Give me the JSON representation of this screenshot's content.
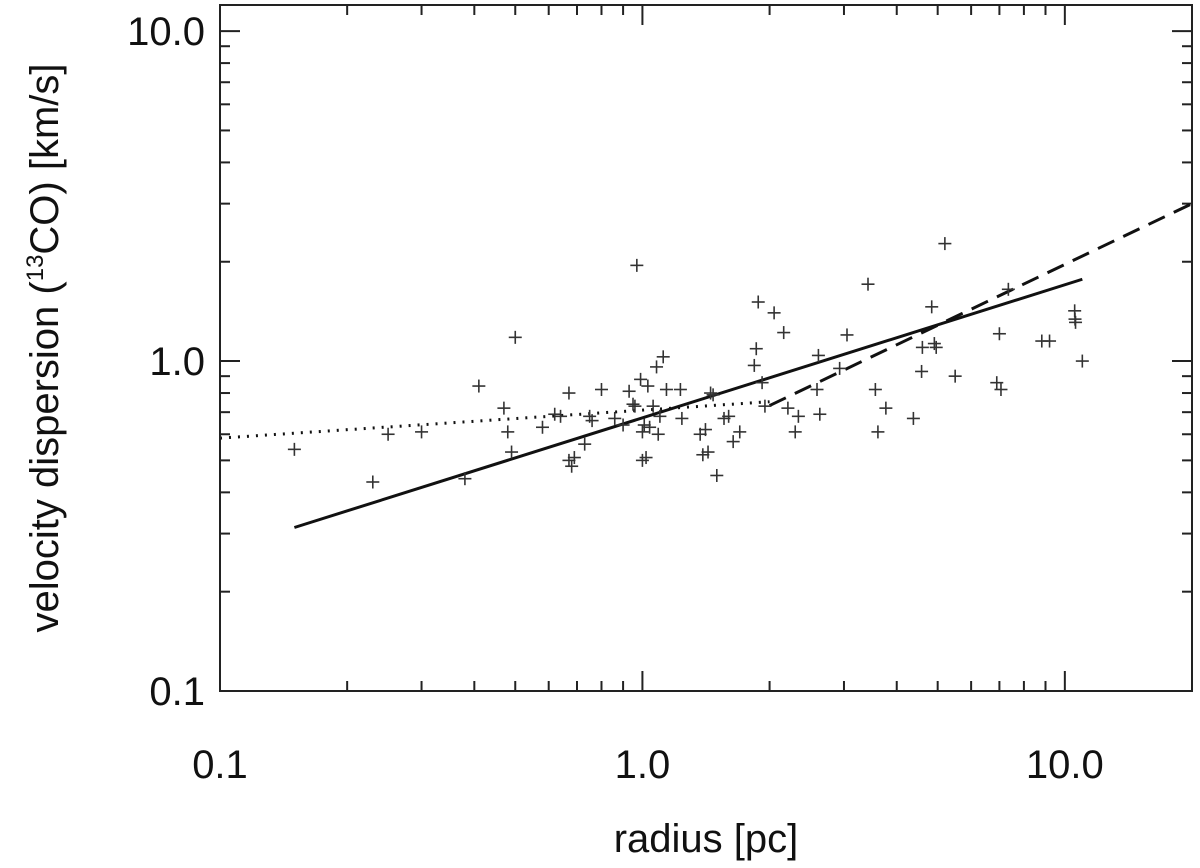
{
  "chart_data": {
    "type": "scatter",
    "title": "",
    "xlabel": "radius [pc]",
    "ylabel": {
      "prefix": "velocity dispersion (",
      "superscript": "13",
      "suffix": "CO) [km/s]"
    },
    "x_scale": "log",
    "y_scale": "log",
    "xlim": [
      0.1,
      20
    ],
    "ylim": [
      0.1,
      12
    ],
    "x_ticks": [
      {
        "value": 0.1,
        "label": "0.1"
      },
      {
        "value": 1.0,
        "label": "1.0"
      },
      {
        "value": 10.0,
        "label": "10.0"
      }
    ],
    "y_ticks": [
      {
        "value": 0.1,
        "label": "0.1"
      },
      {
        "value": 1.0,
        "label": "1.0"
      },
      {
        "value": 10.0,
        "label": "10.0"
      }
    ],
    "grid": false,
    "series": [
      {
        "marker": "plus",
        "points": [
          [
            0.15,
            0.54
          ],
          [
            0.23,
            0.43
          ],
          [
            0.25,
            0.6
          ],
          [
            0.3,
            0.61
          ],
          [
            0.38,
            0.44
          ],
          [
            0.41,
            0.84
          ],
          [
            0.47,
            0.72
          ],
          [
            0.48,
            0.61
          ],
          [
            0.49,
            0.53
          ],
          [
            0.5,
            1.18
          ],
          [
            0.58,
            0.63
          ],
          [
            0.62,
            0.69
          ],
          [
            0.64,
            0.68
          ],
          [
            0.67,
            0.8
          ],
          [
            0.67,
            0.5
          ],
          [
            0.68,
            0.48
          ],
          [
            0.69,
            0.51
          ],
          [
            0.73,
            0.56
          ],
          [
            0.75,
            0.68
          ],
          [
            0.76,
            0.66
          ],
          [
            0.8,
            0.82
          ],
          [
            0.86,
            0.67
          ],
          [
            0.9,
            0.64
          ],
          [
            0.93,
            0.81
          ],
          [
            0.95,
            0.74
          ],
          [
            0.96,
            0.73
          ],
          [
            0.97,
            1.95
          ],
          [
            0.99,
            0.88
          ],
          [
            1.0,
            0.5
          ],
          [
            1.0,
            0.61
          ],
          [
            1.01,
            0.64
          ],
          [
            1.02,
            0.51
          ],
          [
            1.03,
            0.84
          ],
          [
            1.04,
            0.63
          ],
          [
            1.06,
            0.73
          ],
          [
            1.08,
            0.96
          ],
          [
            1.09,
            0.6
          ],
          [
            1.1,
            0.68
          ],
          [
            1.12,
            1.03
          ],
          [
            1.14,
            0.82
          ],
          [
            1.23,
            0.82
          ],
          [
            1.24,
            0.67
          ],
          [
            1.37,
            0.6
          ],
          [
            1.39,
            0.52
          ],
          [
            1.41,
            0.62
          ],
          [
            1.43,
            0.53
          ],
          [
            1.45,
            0.8
          ],
          [
            1.47,
            0.79
          ],
          [
            1.5,
            0.45
          ],
          [
            1.56,
            0.67
          ],
          [
            1.6,
            0.68
          ],
          [
            1.64,
            0.57
          ],
          [
            1.7,
            0.61
          ],
          [
            1.84,
            0.97
          ],
          [
            1.86,
            1.09
          ],
          [
            1.88,
            1.51
          ],
          [
            1.92,
            0.86
          ],
          [
            1.95,
            0.73
          ],
          [
            2.05,
            1.4
          ],
          [
            2.16,
            1.22
          ],
          [
            2.21,
            0.72
          ],
          [
            2.3,
            0.61
          ],
          [
            2.34,
            0.68
          ],
          [
            2.59,
            0.82
          ],
          [
            2.61,
            1.04
          ],
          [
            2.63,
            0.69
          ],
          [
            2.93,
            0.95
          ],
          [
            3.05,
            1.2
          ],
          [
            3.42,
            1.71
          ],
          [
            3.56,
            0.82
          ],
          [
            3.61,
            0.61
          ],
          [
            3.77,
            0.72
          ],
          [
            4.38,
            0.67
          ],
          [
            4.58,
            0.93
          ],
          [
            4.6,
            1.1
          ],
          [
            4.84,
            1.46
          ],
          [
            4.91,
            1.13
          ],
          [
            4.96,
            1.1
          ],
          [
            5.2,
            2.27
          ],
          [
            5.5,
            0.9
          ],
          [
            6.9,
            0.86
          ],
          [
            7.0,
            1.21
          ],
          [
            7.06,
            0.82
          ],
          [
            7.35,
            1.65
          ],
          [
            8.82,
            1.15
          ],
          [
            9.2,
            1.15
          ],
          [
            10.55,
            1.42
          ],
          [
            10.57,
            1.34
          ],
          [
            10.6,
            1.31
          ],
          [
            11.0,
            1.0
          ]
        ]
      },
      {
        "line_style": "solid",
        "points": [
          [
            0.15,
            0.313
          ],
          [
            11.0,
            1.77
          ]
        ]
      },
      {
        "line_style": "dotted",
        "points": [
          [
            0.1,
            0.584
          ],
          [
            2.0,
            0.753
          ]
        ]
      },
      {
        "line_style": "dashed",
        "points": [
          [
            2.0,
            0.733
          ],
          [
            20.0,
            3.0
          ]
        ]
      }
    ]
  }
}
